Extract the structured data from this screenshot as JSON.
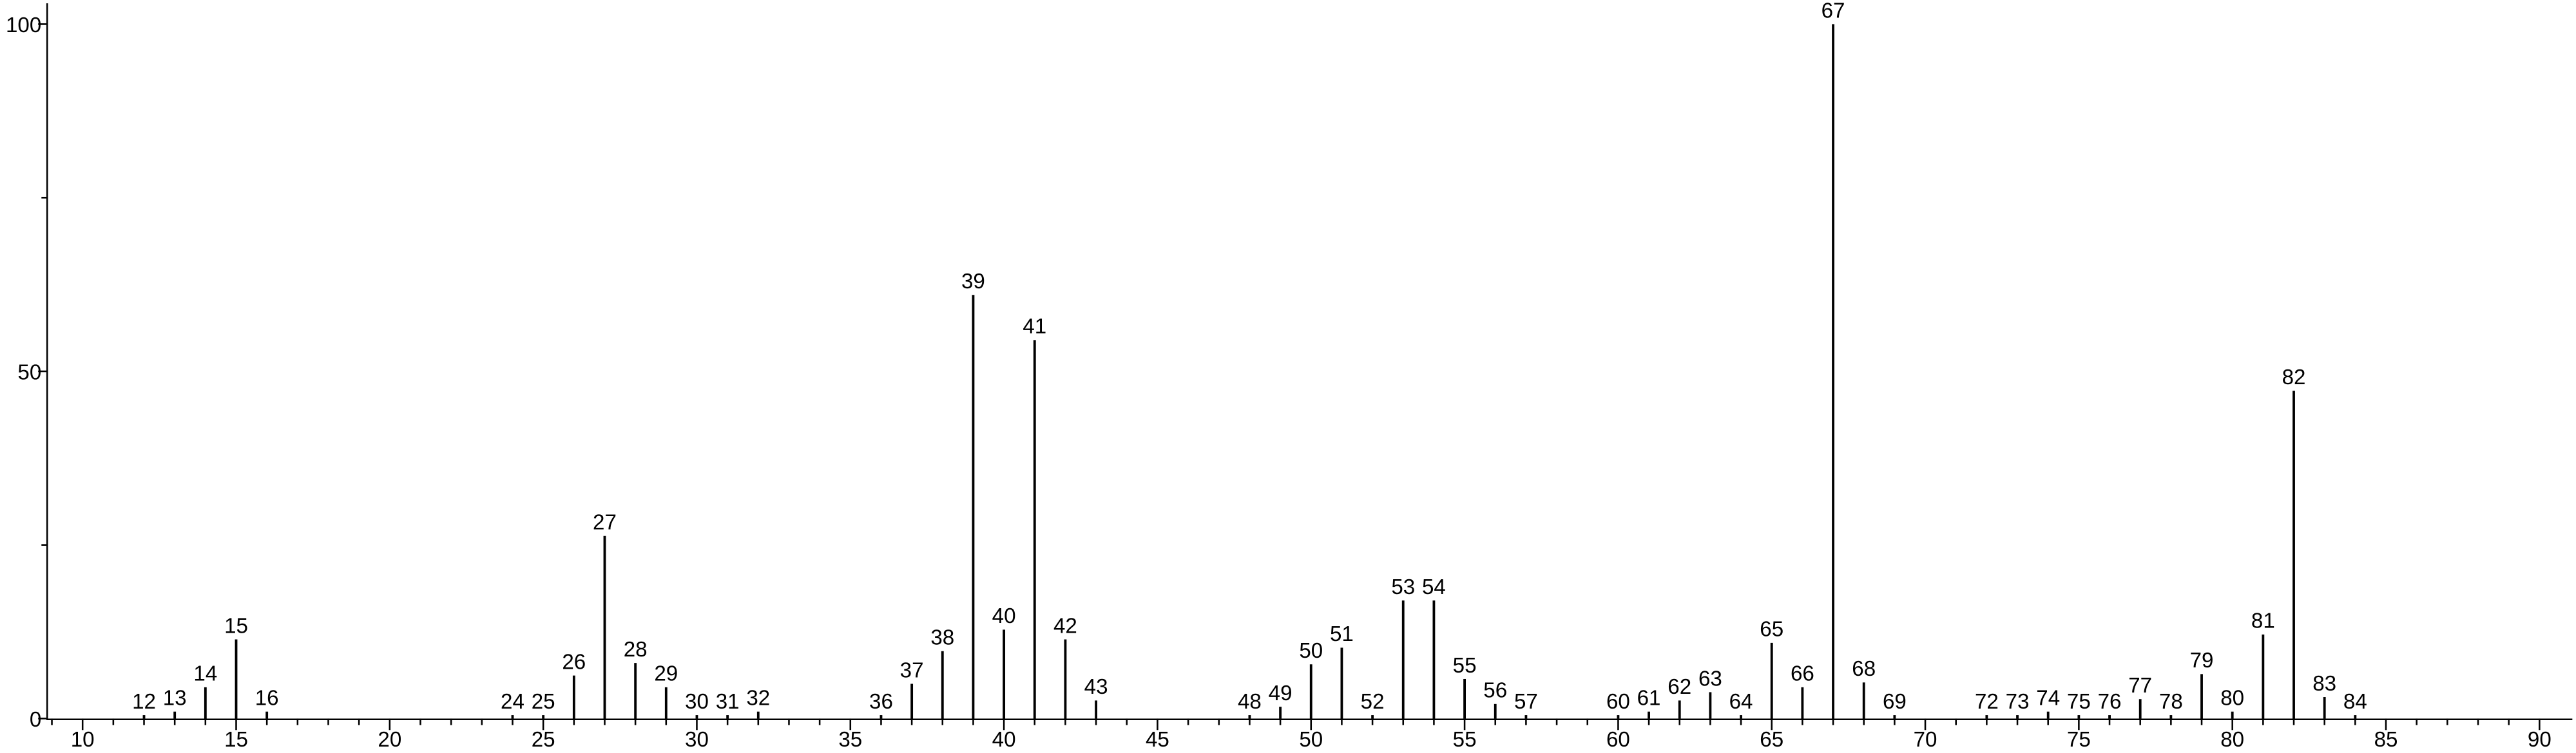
{
  "chart_data": {
    "type": "stem",
    "x": [
      12,
      13,
      14,
      15,
      16,
      24,
      25,
      26,
      27,
      28,
      29,
      30,
      31,
      32,
      36,
      37,
      38,
      39,
      40,
      41,
      42,
      43,
      48,
      49,
      50,
      51,
      52,
      53,
      54,
      55,
      56,
      57,
      60,
      61,
      62,
      63,
      64,
      65,
      66,
      67,
      68,
      69,
      72,
      73,
      74,
      75,
      76,
      77,
      78,
      79,
      80,
      81,
      82,
      83,
      84
    ],
    "values": [
      0.5,
      1,
      4.5,
      11.4,
      1,
      0.5,
      0.5,
      6.2,
      26.3,
      8,
      4.5,
      0.5,
      0.5,
      1,
      0.5,
      5,
      9.7,
      61,
      12.8,
      54.5,
      11.4,
      2.6,
      0.5,
      1.7,
      7.8,
      10.2,
      0.5,
      17,
      17,
      5.7,
      2.1,
      0.5,
      0.5,
      1,
      2.6,
      3.8,
      0.5,
      10.9,
      4.5,
      100,
      5.2,
      0.5,
      0.5,
      0.5,
      1,
      0.5,
      0.5,
      2.8,
      0.5,
      6.4,
      1,
      12.1,
      47.2,
      3.1,
      0.5
    ],
    "color": "#000000",
    "xlim": [
      8.82,
      91.07
    ],
    "ylim": [
      0,
      103
    ],
    "xticks": [
      10,
      15,
      20,
      25,
      30,
      35,
      40,
      45,
      50,
      55,
      60,
      65,
      70,
      75,
      80,
      85,
      90
    ],
    "xminorticks": [
      9,
      11,
      12,
      13,
      14,
      16,
      17,
      18,
      19,
      21,
      22,
      23,
      24,
      26,
      27,
      28,
      29,
      31,
      32,
      33,
      34,
      36,
      37,
      38,
      39,
      41,
      42,
      43,
      44,
      46,
      47,
      48,
      49,
      51,
      52,
      53,
      54,
      56,
      57,
      58,
      59,
      61,
      62,
      63,
      64,
      66,
      67,
      68,
      69,
      71,
      72,
      73,
      74,
      76,
      77,
      78,
      79,
      81,
      82,
      83,
      84,
      86,
      87,
      88,
      89
    ],
    "yticks": [
      0,
      50,
      100
    ],
    "yminorticks": [
      25,
      75
    ]
  }
}
